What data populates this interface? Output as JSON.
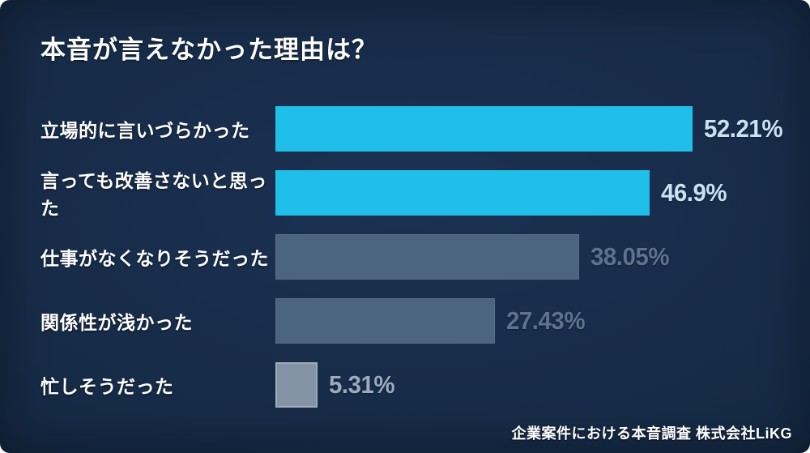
{
  "title": "本音が言えなかった理由は？",
  "footer": "企業案件における本音調査 株式会社LiKG",
  "colors": {
    "background_center": "#1C3152",
    "background_mid": "#152A45",
    "background_edge": "#0E1E33",
    "title_text": "#FFFFFF",
    "label_text": "#FFFFFF",
    "footer_text": "#FFFFFF",
    "highlight_bar": "#1FBFE9",
    "muted_bar": "#4D6480",
    "light_bar": "#8494A6",
    "highlight_value_text": "#C9E2F2",
    "muted_value_text": "#5C7290",
    "light_value_text": "#9AABBE"
  },
  "chart_data": {
    "type": "bar",
    "orientation": "horizontal",
    "title": "本音が言えなかった理由は？",
    "unit": "%",
    "xlim": [
      0,
      55
    ],
    "grid": false,
    "legend": false,
    "categories": [
      "立場的に言いづらかった",
      "言っても改善さないと思った",
      "仕事がなくなりそうだった",
      "関係性が浅かった",
      "忙しそうだった"
    ],
    "values": [
      52.21,
      46.9,
      38.05,
      27.43,
      5.31
    ],
    "rows": [
      {
        "label": "立場的に言いづらかった",
        "value": 52.21,
        "value_label": "52.21%",
        "emphasis": "highlight"
      },
      {
        "label": "言っても改善さないと思った",
        "value": 46.9,
        "value_label": "46.9%",
        "emphasis": "highlight"
      },
      {
        "label": "仕事がなくなりそうだった",
        "value": 38.05,
        "value_label": "38.05%",
        "emphasis": "muted"
      },
      {
        "label": "関係性が浅かった",
        "value": 27.43,
        "value_label": "27.43%",
        "emphasis": "muted"
      },
      {
        "label": "忙しそうだった",
        "value": 5.31,
        "value_label": "5.31%",
        "emphasis": "light"
      }
    ],
    "source_caption": "企業案件における本音調査 株式会社LiKG"
  }
}
